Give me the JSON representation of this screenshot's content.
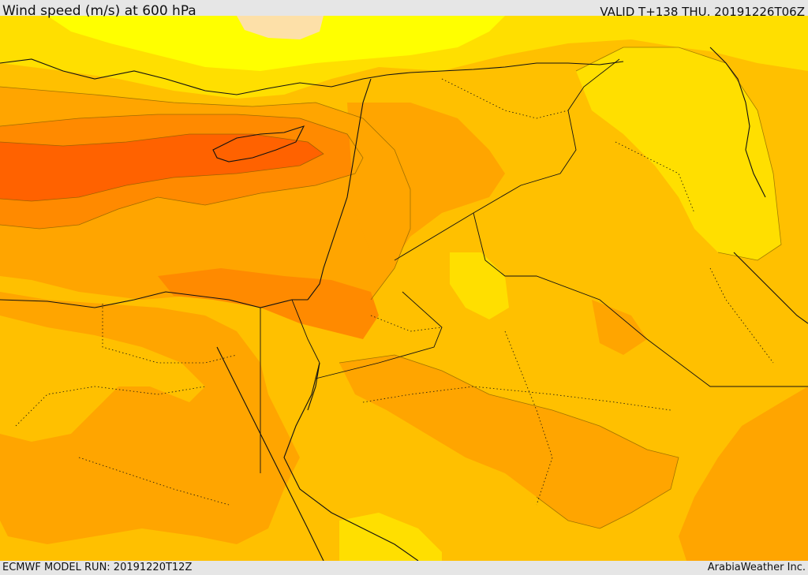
{
  "header": {
    "title": "Wind speed (m/s) at 600 hPa",
    "valid_time": "VALID T+138 THU. 20191226T06Z"
  },
  "footer": {
    "model_run": "ECMWF MODEL RUN: 20191220T12Z",
    "credit": "ArabiaWeather Inc."
  },
  "map": {
    "palette": {
      "very_light": "#fde0a8",
      "light_yellow": "#ffff00",
      "yellow": "#ffdf00",
      "light_orange": "#ffc000",
      "orange": "#ffa500",
      "dark_orange": "#ff8a00",
      "red_orange": "#ff6200",
      "border": "#111111"
    }
  }
}
